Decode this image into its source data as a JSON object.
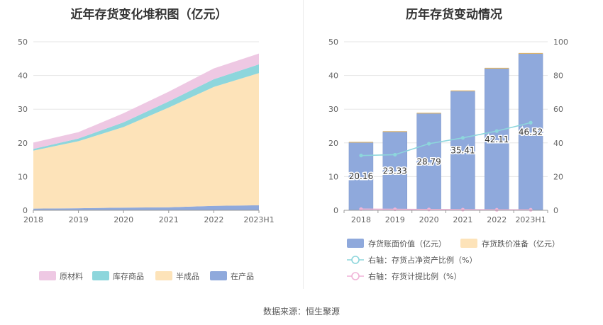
{
  "left_title": "近年存货变化堆积图（亿元）",
  "right_title": "历年存货变动情况",
  "source": "数据来源：恒生聚源",
  "chart_data": [
    {
      "type": "area",
      "stacked": true,
      "title": "近年存货变化堆积图（亿元）",
      "categories": [
        "2018",
        "2019",
        "2020",
        "2021",
        "2022",
        "2023H1"
      ],
      "ylim": [
        0,
        50
      ],
      "yticks": [
        0,
        10,
        20,
        30,
        40,
        50
      ],
      "grid": true,
      "legend_position": "bottom",
      "series": [
        {
          "name": "在产品",
          "color": "#8fa9dc",
          "values": [
            0.5,
            0.6,
            0.8,
            0.9,
            1.3,
            1.5
          ]
        },
        {
          "name": "半成品",
          "color": "#fde3b9",
          "values": [
            17.2,
            19.9,
            23.9,
            29.6,
            35.3,
            39.2
          ]
        },
        {
          "name": "库存商品",
          "color": "#8dd6dc",
          "values": [
            0.5,
            0.8,
            1.4,
            1.8,
            2.3,
            2.6
          ]
        },
        {
          "name": "原材料",
          "color": "#eec8e3",
          "values": [
            1.9,
            1.9,
            2.7,
            2.9,
            3.2,
            3.2
          ]
        }
      ],
      "legend_order": [
        "原材料",
        "库存商品",
        "半成品",
        "在产品"
      ]
    },
    {
      "type": "bar",
      "title": "历年存货变动情况",
      "categories": [
        "2018",
        "2019",
        "2020",
        "2021",
        "2022",
        "2023H1"
      ],
      "ylim": [
        0,
        50
      ],
      "yticks": [
        0,
        10,
        20,
        30,
        40,
        50
      ],
      "y2lim": [
        0,
        100
      ],
      "y2ticks": [
        0,
        20,
        40,
        60,
        80,
        100
      ],
      "grid": true,
      "legend_position": "bottom",
      "bars": [
        {
          "name": "存货账面价值（亿元）",
          "color": "#8fa9dc",
          "values": [
            20.16,
            23.33,
            28.79,
            35.41,
            42.11,
            46.52
          ],
          "labels": [
            "20.16",
            "23.33",
            "28.79",
            "35.41",
            "42.11",
            "46.52"
          ]
        },
        {
          "name": "存货跌价准备（亿元）",
          "color": "#fde3b9",
          "values": [
            0.15,
            0.15,
            0.15,
            0.15,
            0.15,
            0.15
          ]
        }
      ],
      "lines": [
        {
          "name": "右轴：存货占净资产比例（%）",
          "color": "#8dd6dc",
          "axis": "right",
          "values": [
            32.5,
            33,
            39.5,
            43,
            47,
            52
          ]
        },
        {
          "name": "右轴：存货计提比例（%）",
          "color": "#f0b4d8",
          "axis": "right",
          "values": [
            0.7,
            0.6,
            0.5,
            0.4,
            0.3,
            0.3
          ]
        }
      ]
    }
  ]
}
